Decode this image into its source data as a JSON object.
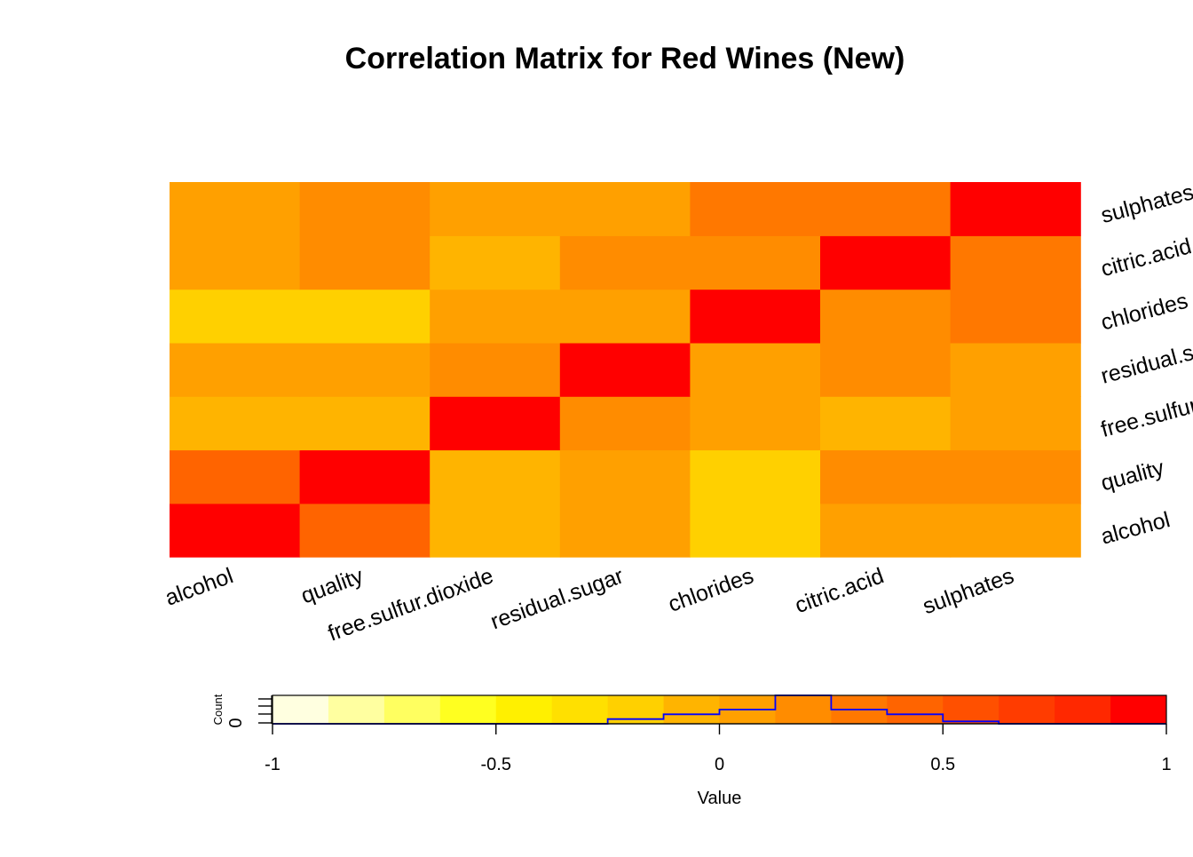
{
  "chart_data": {
    "type": "heatmap",
    "title": "Correlation Matrix for Red Wines (New)",
    "variables": [
      "alcohol",
      "quality",
      "free.sulfur.dioxide",
      "residual.sugar",
      "chlorides",
      "citric.acid",
      "sulphates"
    ],
    "column_labels": [
      "alcohol",
      "quality",
      "free.sulfur.dioxide",
      "residual.sugar",
      "chlorides",
      "citric.acid",
      "sulphates"
    ],
    "row_labels": [
      "alcohol",
      "quality",
      "free.sulfur.dioxide",
      "residual.sugar",
      "chlorides",
      "citric.acid",
      "sulphates"
    ],
    "values": [
      [
        1.0,
        0.48,
        -0.07,
        0.04,
        -0.22,
        0.11,
        0.09
      ],
      [
        0.48,
        1.0,
        -0.05,
        0.01,
        -0.13,
        0.23,
        0.25
      ],
      [
        -0.07,
        -0.05,
        1.0,
        0.19,
        0.01,
        -0.06,
        0.05
      ],
      [
        0.04,
        0.01,
        0.19,
        1.0,
        0.06,
        0.15,
        0.01
      ],
      [
        -0.22,
        -0.13,
        0.01,
        0.06,
        1.0,
        0.2,
        0.37
      ],
      [
        0.11,
        0.23,
        -0.06,
        0.15,
        0.2,
        1.0,
        0.31
      ],
      [
        0.09,
        0.25,
        0.05,
        0.01,
        0.37,
        0.31,
        1.0
      ]
    ],
    "color_scale": {
      "breaks": [
        -1,
        -0.875,
        -0.75,
        -0.625,
        -0.5,
        -0.375,
        -0.25,
        -0.125,
        0,
        0.125,
        0.25,
        0.375,
        0.5,
        0.625,
        0.75,
        0.875,
        1
      ],
      "colors": [
        "#FFFFE0",
        "#FFFFA0",
        "#FFFF60",
        "#FFFF20",
        "#FFF000",
        "#FFE000",
        "#FFD000",
        "#FFB400",
        "#FFA000",
        "#FF8C00",
        "#FF7800",
        "#FF6400",
        "#FF5000",
        "#FF3C00",
        "#FF2800",
        "#FF0000"
      ]
    },
    "color_key": {
      "xlabel": "Value",
      "ylabel": "Count",
      "y_tick_label": "0",
      "xticks": [
        -1,
        -0.5,
        0,
        0.5,
        1
      ],
      "xtick_labels": [
        "-1",
        "-0.5",
        "0",
        "0.5",
        "1"
      ],
      "xlim": [
        -1,
        1
      ],
      "histogram_counts": [
        0,
        0,
        0,
        0,
        0,
        0,
        2,
        4,
        6,
        12,
        6,
        4,
        1,
        0,
        0,
        0,
        7
      ],
      "histogram_max": 12,
      "histogram_color": "#0000FF"
    },
    "legend_position": "bottom"
  }
}
